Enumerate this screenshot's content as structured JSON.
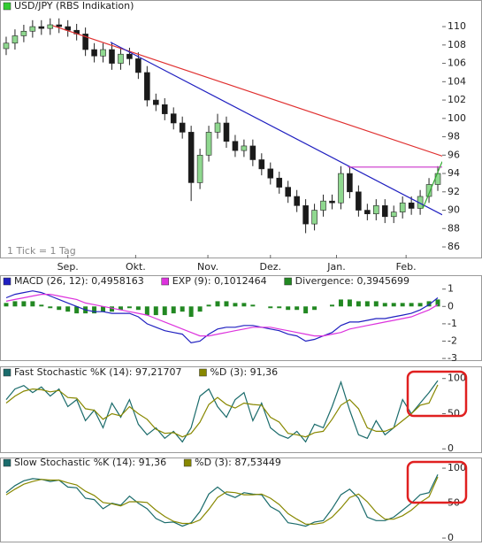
{
  "chart_data": [
    {
      "type": "candlestick",
      "title": "USD/JPY (RBS Indikation)",
      "title_marker_color": "#33cc33",
      "annotation": "1 Tick = 1 Tag",
      "open": [
        107.6,
        108.2,
        109,
        109.5,
        110,
        109.8,
        110.2,
        110,
        109.6,
        109.2,
        107.5,
        106.8,
        107.5,
        106,
        107,
        106.5,
        105,
        102,
        101.5,
        100.5,
        99.5,
        98.5,
        93,
        96,
        98.5,
        99.5,
        97.5,
        96.5,
        97,
        95.5,
        94.5,
        93.5,
        92.5,
        91.5,
        90.5,
        88.5,
        90,
        91,
        90.8,
        94,
        92,
        90,
        89.6,
        90.5,
        89.3,
        89.8,
        90.8,
        90.2,
        91.5,
        92.8
      ],
      "high": [
        108.9,
        109.7,
        110.2,
        110.7,
        110.7,
        110.9,
        110.9,
        110.7,
        110.3,
        109.9,
        108.2,
        108.2,
        108.2,
        107.7,
        107.7,
        107.2,
        105.7,
        102.7,
        102.2,
        101.2,
        100.2,
        99.2,
        96.7,
        99.2,
        100.5,
        100.2,
        98.2,
        97.7,
        97.7,
        96.2,
        95.2,
        94.2,
        93.2,
        92.2,
        91.2,
        90.7,
        91.7,
        91.7,
        94.8,
        94.7,
        92.7,
        90.7,
        91.2,
        91.2,
        90.5,
        91.5,
        91.5,
        92.2,
        93.5,
        94.8
      ],
      "low": [
        106.9,
        107.5,
        108.3,
        108.8,
        109.1,
        109.1,
        109.3,
        108.9,
        108.5,
        106.8,
        106.1,
        106.1,
        105.3,
        105.3,
        105.8,
        104.3,
        101.3,
        100.8,
        99.8,
        98.8,
        97.8,
        91,
        92.3,
        95.3,
        97.8,
        96.8,
        95.8,
        95.8,
        94.8,
        93.8,
        92.8,
        91.8,
        90.8,
        89.8,
        87.5,
        87.8,
        89.3,
        90.1,
        90.1,
        91.3,
        89.3,
        88.9,
        88.9,
        88.6,
        88.6,
        89.1,
        89.5,
        89.5,
        90.8,
        92.1
      ],
      "close": [
        108.2,
        109,
        109.5,
        110,
        109.8,
        110.2,
        110,
        109.6,
        109.2,
        107.5,
        106.8,
        107.5,
        106,
        107,
        106.5,
        105,
        102,
        101.5,
        100.5,
        99.5,
        98.5,
        93,
        96,
        98.5,
        99.5,
        97.5,
        96.5,
        97,
        95.5,
        94.5,
        93.5,
        92.5,
        91.5,
        90.5,
        88.5,
        90,
        91,
        90.8,
        94,
        92,
        90,
        89.6,
        90.5,
        89.3,
        89.8,
        90.8,
        90.2,
        91.5,
        92.8,
        94
      ],
      "up_color": "#8fd88f",
      "down_color": "#1a1a1a",
      "xlim": [
        -0.5,
        49.5
      ],
      "xticks": [
        {
          "value": 7,
          "label": "Sep."
        },
        {
          "value": 14.7,
          "label": "Okt."
        },
        {
          "value": 22.9,
          "label": "Nov."
        },
        {
          "value": 30,
          "label": "Dez."
        },
        {
          "value": 37.5,
          "label": "Jan."
        },
        {
          "value": 45.4,
          "label": "Feb."
        }
      ],
      "ylim": [
        84.75,
        112.9
      ],
      "yticks": [
        86,
        88,
        90,
        92,
        94,
        96,
        98,
        100,
        102,
        104,
        106,
        108,
        110
      ],
      "trend_lines": [
        {
          "color": "#e03030",
          "x": [
            5.3,
            49.5
          ],
          "y": [
            110.1,
            95.9
          ]
        },
        {
          "color": "#2020c0",
          "x": [
            11.85,
            49.5
          ],
          "y": [
            108.3,
            89.5
          ]
        },
        {
          "color": "#cc33cc",
          "x": [
            38.8,
            49.5
          ],
          "y": [
            94.7,
            94.7
          ]
        },
        {
          "color": "#33aa33",
          "x": [
            47.3,
            49.5
          ],
          "y": [
            90.2,
            95.3
          ]
        }
      ]
    },
    {
      "type": "macd",
      "xlim": [
        -0.5,
        49.5
      ],
      "ylim": [
        -3.15,
        1.75
      ],
      "yticks": [
        -3,
        -2,
        -1,
        0,
        1
      ],
      "series": [
        {
          "name": "MACD (26, 12): 0,4958163",
          "color": "#2020c0",
          "kind": "line",
          "values": [
            0.5,
            0.7,
            0.8,
            0.9,
            0.8,
            0.6,
            0.4,
            0.2,
            0.0,
            -0.2,
            -0.3,
            -0.3,
            -0.4,
            -0.4,
            -0.4,
            -0.6,
            -1.0,
            -1.2,
            -1.4,
            -1.5,
            -1.6,
            -2.1,
            -2.0,
            -1.6,
            -1.3,
            -1.2,
            -1.2,
            -1.1,
            -1.1,
            -1.2,
            -1.3,
            -1.4,
            -1.6,
            -1.7,
            -2.0,
            -1.9,
            -1.7,
            -1.5,
            -1.1,
            -0.9,
            -0.9,
            -0.8,
            -0.7,
            -0.7,
            -0.6,
            -0.5,
            -0.4,
            -0.2,
            0.1,
            0.5
          ]
        },
        {
          "name": "EXP (9): 0,1012464",
          "color": "#dd33dd",
          "kind": "line",
          "values": [
            0.3,
            0.4,
            0.5,
            0.6,
            0.7,
            0.7,
            0.6,
            0.5,
            0.4,
            0.2,
            0.1,
            0.0,
            -0.1,
            -0.2,
            -0.3,
            -0.4,
            -0.5,
            -0.7,
            -0.9,
            -1.1,
            -1.3,
            -1.5,
            -1.7,
            -1.7,
            -1.6,
            -1.5,
            -1.4,
            -1.3,
            -1.2,
            -1.2,
            -1.2,
            -1.3,
            -1.4,
            -1.5,
            -1.6,
            -1.7,
            -1.7,
            -1.6,
            -1.5,
            -1.3,
            -1.2,
            -1.1,
            -1.0,
            -0.9,
            -0.8,
            -0.7,
            -0.6,
            -0.4,
            -0.2,
            0.1
          ]
        },
        {
          "name": "Divergence: 0,3945699",
          "color": "#228822",
          "kind": "bar",
          "values": [
            0.2,
            0.3,
            0.3,
            0.3,
            0.1,
            -0.1,
            -0.2,
            -0.3,
            -0.4,
            -0.4,
            -0.4,
            -0.3,
            -0.3,
            -0.2,
            -0.1,
            -0.2,
            -0.5,
            -0.5,
            -0.5,
            -0.4,
            -0.3,
            -0.6,
            -0.3,
            0.1,
            0.3,
            0.3,
            0.2,
            0.2,
            0.1,
            0.0,
            -0.1,
            -0.1,
            -0.2,
            -0.2,
            -0.4,
            -0.2,
            0.0,
            0.1,
            0.4,
            0.4,
            0.3,
            0.3,
            0.3,
            0.2,
            0.2,
            0.2,
            0.2,
            0.2,
            0.3,
            0.4
          ]
        }
      ]
    },
    {
      "type": "line",
      "xlim": [
        -0.5,
        49.5
      ],
      "ylim": [
        -6,
        116
      ],
      "yticks": [
        0,
        50,
        100
      ],
      "series": [
        {
          "name": "Fast Stochastic %K (14): 97,21707",
          "color": "#1a6b6b",
          "values": [
            70,
            85,
            90,
            80,
            88,
            75,
            85,
            60,
            70,
            40,
            55,
            30,
            65,
            45,
            70,
            35,
            20,
            30,
            15,
            25,
            10,
            30,
            75,
            85,
            60,
            45,
            70,
            80,
            40,
            65,
            30,
            20,
            15,
            25,
            10,
            35,
            30,
            60,
            95,
            55,
            20,
            15,
            40,
            20,
            30,
            70,
            50,
            65,
            80,
            97
          ]
        },
        {
          "name": "%D (3): 91,36",
          "color": "#888800",
          "values": [
            65,
            75,
            82,
            85,
            84,
            81,
            83,
            73,
            72,
            57,
            55,
            42,
            50,
            47,
            60,
            50,
            42,
            28,
            22,
            23,
            17,
            22,
            38,
            63,
            73,
            63,
            58,
            65,
            63,
            62,
            45,
            38,
            22,
            20,
            17,
            23,
            25,
            42,
            62,
            70,
            57,
            30,
            25,
            25,
            30,
            40,
            50,
            62,
            65,
            91
          ]
        }
      ]
    },
    {
      "type": "line",
      "xlim": [
        -0.5,
        49.5
      ],
      "ylim": [
        -5,
        114
      ],
      "yticks": [
        0,
        50,
        100
      ],
      "series": [
        {
          "name": "Slow Stochastic %K (14): 91,36",
          "color": "#1a6b6b",
          "values": [
            65,
            75,
            82,
            85,
            84,
            81,
            83,
            73,
            72,
            57,
            55,
            42,
            50,
            47,
            60,
            50,
            42,
            28,
            22,
            23,
            17,
            22,
            38,
            63,
            73,
            63,
            58,
            65,
            63,
            62,
            45,
            38,
            22,
            20,
            17,
            23,
            25,
            42,
            62,
            70,
            57,
            30,
            25,
            25,
            30,
            40,
            50,
            62,
            65,
            91
          ]
        },
        {
          "name": "%D (3): 87,53449",
          "color": "#888800",
          "values": [
            62,
            70,
            77,
            81,
            84,
            83,
            83,
            79,
            76,
            67,
            61,
            51,
            49,
            46,
            52,
            52,
            51,
            40,
            31,
            24,
            21,
            21,
            26,
            41,
            58,
            66,
            65,
            62,
            62,
            63,
            57,
            48,
            35,
            27,
            20,
            20,
            22,
            30,
            43,
            58,
            63,
            52,
            37,
            27,
            27,
            32,
            40,
            51,
            59,
            87.5
          ]
        }
      ]
    }
  ]
}
